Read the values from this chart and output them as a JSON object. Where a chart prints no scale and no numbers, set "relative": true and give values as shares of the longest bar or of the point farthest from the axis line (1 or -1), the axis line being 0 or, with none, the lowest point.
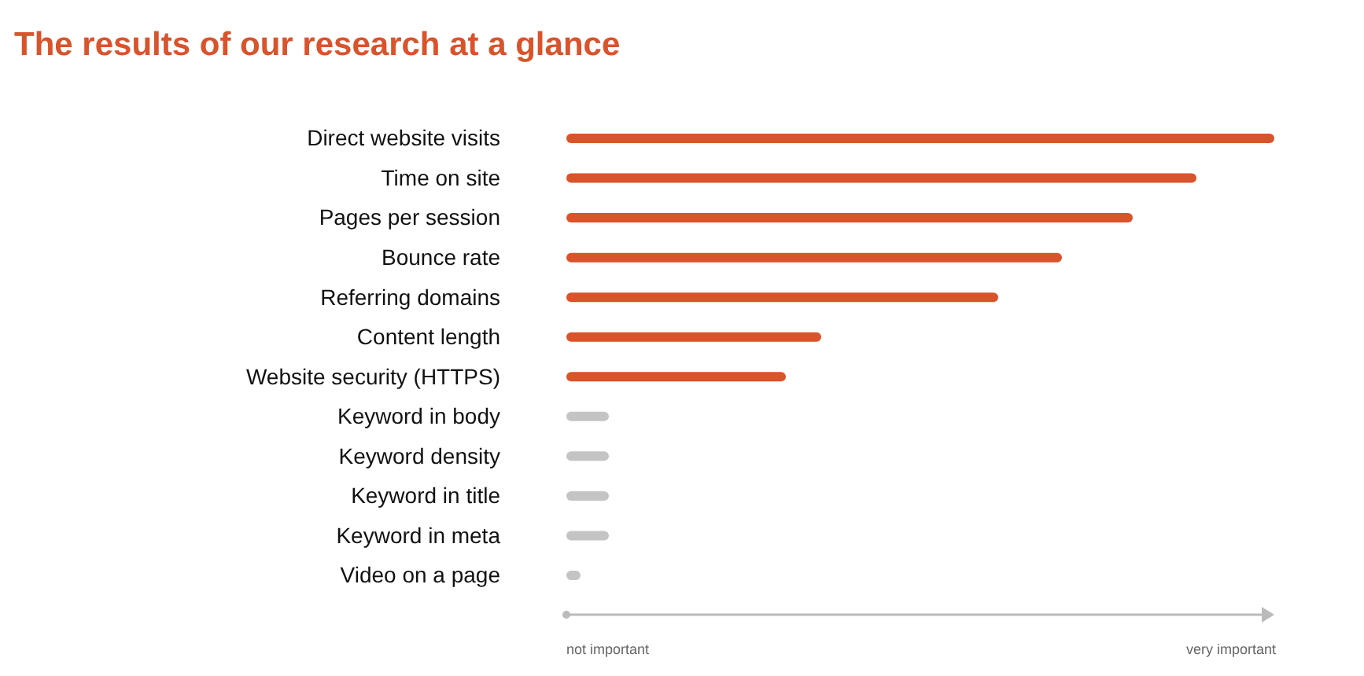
{
  "chart_data": {
    "type": "bar",
    "orientation": "horizontal",
    "relative": true,
    "title": "The results of our research at a glance",
    "categories": [
      "Direct website visits",
      "Time on site",
      "Pages per session",
      "Bounce rate",
      "Referring domains",
      "Content length",
      "Website security (HTTPS)",
      "Keyword in body",
      "Keyword density",
      "Keyword in title",
      "Keyword in meta",
      "Video on a page"
    ],
    "values": [
      1,
      0.89,
      0.8,
      0.7,
      0.61,
      0.36,
      0.31,
      0.06,
      0.06,
      0.06,
      0.06,
      0.02
    ],
    "colors": [
      "#d9532b",
      "#d9532b",
      "#d9532b",
      "#d9532b",
      "#d9532b",
      "#d9532b",
      "#d9532b",
      "#c4c4c4",
      "#c4c4c4",
      "#c4c4c4",
      "#c4c4c4",
      "#c4c4c4"
    ],
    "annotations": [
      "not important",
      "very important"
    ]
  }
}
